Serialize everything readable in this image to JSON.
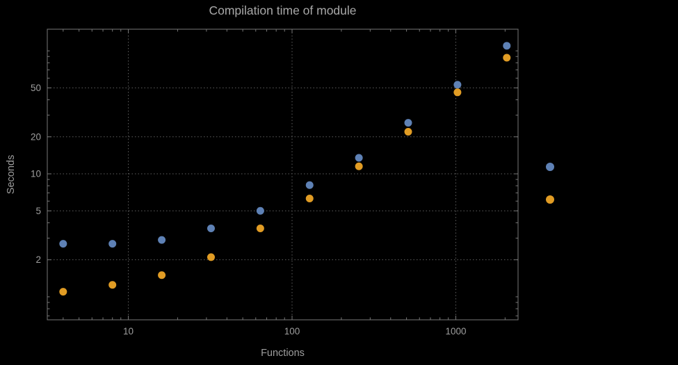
{
  "title": "Compilation time of module",
  "axes": {
    "x_label": "Functions",
    "y_label": "Seconds"
  },
  "chart_data": {
    "type": "scatter",
    "title": "Compilation time of module",
    "xlabel": "Functions",
    "ylabel": "Seconds",
    "x_scale": "log",
    "y_scale": "log",
    "xlim": [
      3.2,
      2400
    ],
    "ylim": [
      0.65,
      150
    ],
    "x_ticks": [
      10,
      100,
      1000
    ],
    "x_tick_labels": [
      "10",
      "100",
      "1000"
    ],
    "y_ticks": [
      2,
      5,
      10,
      20,
      50
    ],
    "y_tick_labels": [
      "2",
      "5",
      "10",
      "20",
      "50"
    ],
    "grid": true,
    "grid_style": "dotted",
    "legend_position": "right-outside",
    "x": [
      4,
      8,
      16,
      32,
      64,
      128,
      256,
      512,
      1024,
      2048
    ],
    "series": [
      {
        "name": "blue-series",
        "color": "#5e81b5",
        "values": [
          2.7,
          2.7,
          2.9,
          3.6,
          5.0,
          8.1,
          13.5,
          26,
          53,
          110
        ]
      },
      {
        "name": "orange-series",
        "color": "#e19c24",
        "values": [
          1.1,
          1.25,
          1.5,
          2.1,
          3.6,
          6.3,
          11.5,
          22,
          46,
          88
        ]
      }
    ],
    "legend_markers": [
      {
        "series": "blue-series",
        "color": "#5e81b5"
      },
      {
        "series": "orange-series",
        "color": "#e19c24"
      }
    ]
  },
  "colors": {
    "background": "#000000",
    "grid": "#5f5f5f",
    "frame": "#787878",
    "text": "#9e9e9e",
    "title_text": "#a8a8a8"
  }
}
